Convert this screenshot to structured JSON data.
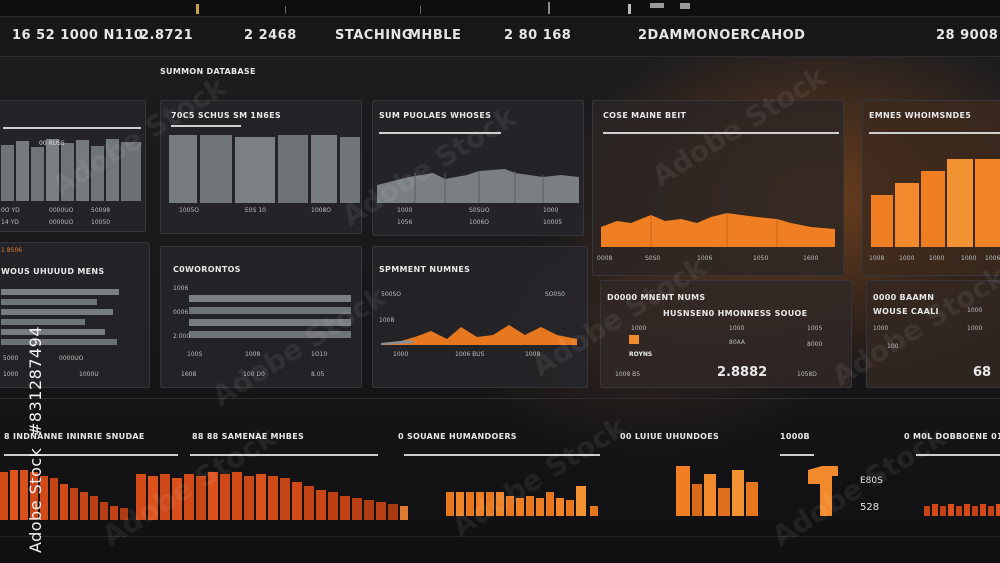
{
  "header": {
    "left_code": "16 52 1000 N110",
    "value_1": "2.8721",
    "value_2": "2 2468",
    "title_1": "STACHING",
    "title_2": "MHBLE",
    "value_3": "2 80 168",
    "center_title": "2DAMMONOERCAHOD",
    "right_value": "28 9008"
  },
  "section_title": "SUMMON DATABASE",
  "panels": {
    "p1": {
      "title": "",
      "labels": [
        "0O YD",
        "0000UO",
        "50098",
        "0000UO",
        "10050",
        "14 YD"
      ]
    },
    "p2": {
      "title": "70C5 SCHUS SM 1N6ES",
      "labels": [
        "1005O",
        "E0S 10",
        "1008O"
      ]
    },
    "p3": {
      "title": "SUM PUOLAES WHOSES",
      "labels": [
        "1000",
        "S0SUO",
        "1000",
        "1056",
        "1006O",
        "10005"
      ]
    },
    "p4": {
      "title": "COSE MAINE BEIT",
      "labels": [
        "0008",
        "S0S0",
        "1006",
        "1050",
        "1600"
      ]
    },
    "p5": {
      "title": "EMNE5 WHOIMSNDE5",
      "labels": [
        "1008",
        "1000",
        "1000",
        "1000",
        "1006"
      ]
    },
    "p6": {
      "title": "WOUS UHUUUD MENS",
      "top_label": "1 8506",
      "labels": [
        "5000",
        "0000UO",
        "1000",
        "1000U"
      ]
    },
    "p7": {
      "title": "C0WORONTOS",
      "labels": [
        "1006",
        "0006",
        "2.000",
        "100S",
        "1008",
        "1O10",
        "1608",
        "100 D0",
        "8.05"
      ]
    },
    "p8": {
      "title": "SPMMENT NUMNES",
      "labels": [
        "500SO",
        "SO0S0",
        "1008",
        "1000",
        "1006 BUS",
        "1008"
      ]
    },
    "p9": {
      "title": "D0000 MNENT NUMS",
      "sub_title": "HUSNSEN0 HMONNESS SOUOE",
      "labels": [
        "1000",
        "1000",
        "1005",
        "80AA",
        "8000",
        "800O"
      ],
      "tag": "ROYNS",
      "bottom_left": "1008 B5",
      "value": "2.8882",
      "bottom_right": "1058D"
    },
    "p10": {
      "title": "0000 BAAMN",
      "sub_title": "WOUSE CAALI",
      "labels": [
        "1000",
        "1000",
        "1000",
        "100"
      ],
      "value": "68"
    }
  },
  "bottom": {
    "b1": {
      "title": "8 INDNANNE ININRIE SNUDAE"
    },
    "b2": {
      "title": "88 88 SAMENAE MHBES"
    },
    "b3": {
      "title": "0 SOUANE HUMANDOERS"
    },
    "b4": {
      "title": "00 LUIUE UHUNDOES"
    },
    "b5": {
      "title": "1000B"
    },
    "b6": {
      "title": "0 M0L DOBBOENE 01",
      "metric_1": "E80S",
      "metric_2": "528"
    }
  },
  "watermark": "Adobe Stock",
  "side_code": "#831287494",
  "colors": {
    "accent": "#f07f23",
    "accent_dark": "#d24a18",
    "bars_grey": "#6f7479"
  }
}
